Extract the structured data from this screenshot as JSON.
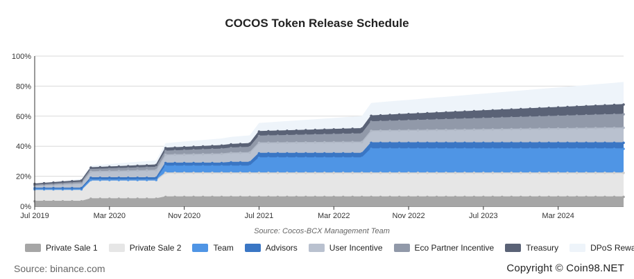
{
  "title": "COCOS Token Release Schedule",
  "source_note": "Source: Cocos-BCX Management Team",
  "footer": {
    "source": "Source: binance.com",
    "copyright": "Copyright © Coin98.NET"
  },
  "chart_data": {
    "type": "area",
    "stacked": true,
    "x_unit": "month",
    "x_start": "Jul 2019",
    "x_end": "Oct 2024",
    "x_tick_labels": [
      "Jul 2019",
      "Mar 2020",
      "Nov 2020",
      "Jul 2021",
      "Mar 2022",
      "Nov 2022",
      "Jul 2023",
      "Mar 2024"
    ],
    "y_tick_labels": [
      "0%",
      "20%",
      "40%",
      "60%",
      "80%",
      "100%"
    ],
    "ylim": [
      0,
      100
    ],
    "y_unit": "%",
    "grid": true,
    "legend_position": "bottom",
    "series": [
      {
        "name": "Private Sale 1",
        "color": "#a6a6a6",
        "values": [
          [
            0,
            3.3
          ],
          [
            5,
            3.3
          ],
          [
            6,
            5
          ],
          [
            13,
            5
          ],
          [
            14,
            6.25
          ],
          [
            63,
            6.25
          ]
        ]
      },
      {
        "name": "Private Sale 2",
        "color": "#e6e6e6",
        "values": [
          [
            0,
            8
          ],
          [
            5,
            8
          ],
          [
            6,
            12.5
          ],
          [
            13,
            12.5
          ],
          [
            14,
            16
          ],
          [
            63,
            16
          ]
        ]
      },
      {
        "name": "Team",
        "color": "#4f95e5",
        "values": [
          [
            0,
            0
          ],
          [
            5,
            0
          ],
          [
            6,
            0
          ],
          [
            13,
            0
          ],
          [
            14,
            4.5
          ],
          [
            23,
            4.5
          ],
          [
            24,
            10
          ],
          [
            35,
            10
          ],
          [
            36,
            16
          ],
          [
            63,
            16
          ]
        ]
      },
      {
        "name": "Advisors",
        "color": "#3a76c4",
        "values": [
          [
            0,
            0.8
          ],
          [
            5,
            0.8
          ],
          [
            6,
            1.5
          ],
          [
            13,
            1.5
          ],
          [
            14,
            2
          ],
          [
            20,
            2
          ],
          [
            21,
            2.5
          ],
          [
            23,
            2.5
          ],
          [
            24,
            3
          ],
          [
            35,
            3
          ],
          [
            36,
            4
          ],
          [
            63,
            4
          ]
        ]
      },
      {
        "name": "User Incentive",
        "color": "#b9c1cf",
        "values": [
          [
            0,
            1.5
          ],
          [
            5,
            3
          ],
          [
            6,
            4
          ],
          [
            13,
            5
          ],
          [
            14,
            5.5
          ],
          [
            23,
            6.5
          ],
          [
            24,
            7
          ],
          [
            35,
            7.5
          ],
          [
            36,
            8
          ],
          [
            63,
            10
          ]
        ]
      },
      {
        "name": "Eco Partner Incentive",
        "color": "#9199a9",
        "values": [
          [
            0,
            0.5
          ],
          [
            5,
            1
          ],
          [
            6,
            1.5
          ],
          [
            13,
            2
          ],
          [
            14,
            2.5
          ],
          [
            23,
            3.5
          ],
          [
            24,
            4.5
          ],
          [
            35,
            5.5
          ],
          [
            36,
            6
          ],
          [
            63,
            9
          ]
        ]
      },
      {
        "name": "Treasury",
        "color": "#5a6276",
        "values": [
          [
            0,
            0.8
          ],
          [
            5,
            1
          ],
          [
            6,
            1.2
          ],
          [
            13,
            1.5
          ],
          [
            14,
            2
          ],
          [
            23,
            2.5
          ],
          [
            24,
            3
          ],
          [
            35,
            3.5
          ],
          [
            36,
            4
          ],
          [
            63,
            6.5
          ]
        ]
      },
      {
        "name": "DPoS Reward",
        "color": "#eef4fa",
        "values": [
          [
            0,
            0
          ],
          [
            63,
            15
          ]
        ]
      }
    ]
  }
}
